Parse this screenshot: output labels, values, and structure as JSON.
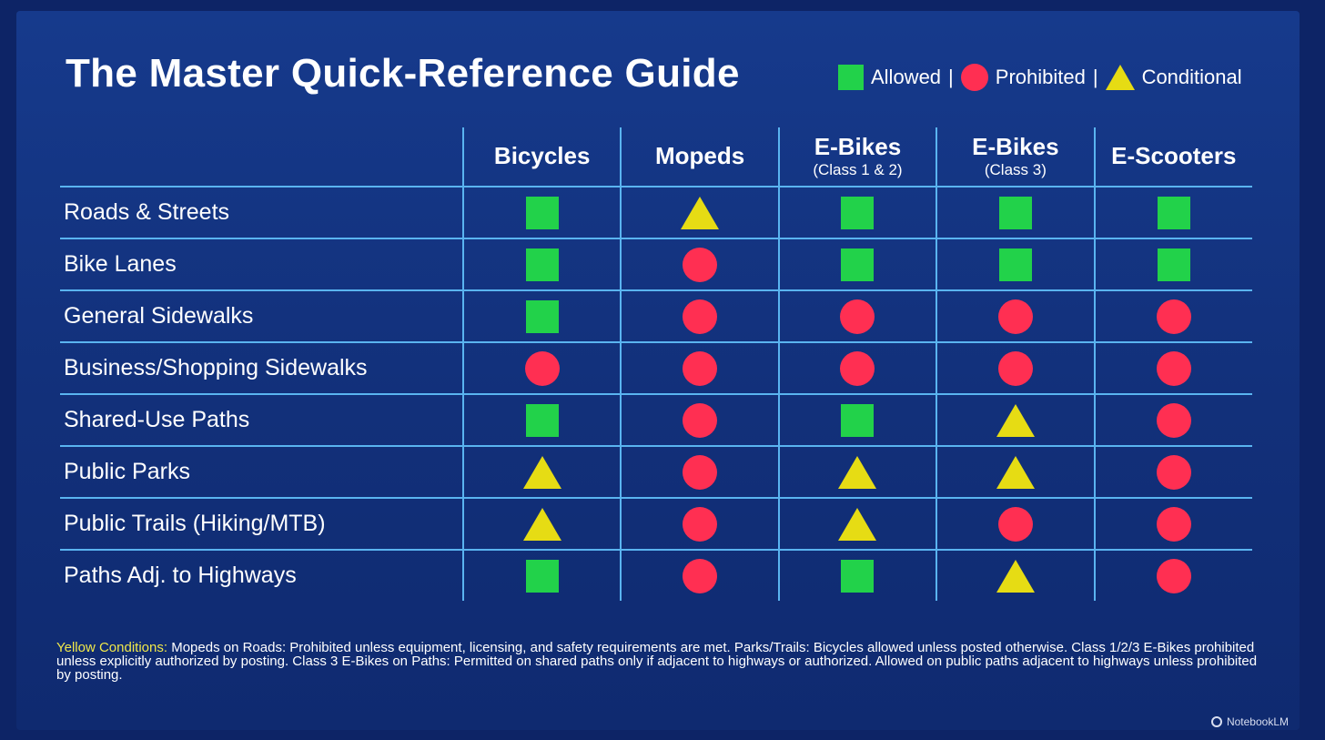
{
  "title": "The Master Quick-Reference Guide",
  "legend": {
    "allowed": "Allowed",
    "prohibited": "Prohibited",
    "conditional": "Conditional",
    "separator": "|"
  },
  "columns": [
    {
      "label": "Bicycles",
      "sub": ""
    },
    {
      "label": "Mopeds",
      "sub": ""
    },
    {
      "label": "E-Bikes",
      "sub": "(Class 1 & 2)"
    },
    {
      "label": "E-Bikes",
      "sub": "(Class 3)"
    },
    {
      "label": "E-Scooters",
      "sub": ""
    }
  ],
  "rows": [
    {
      "label": "Roads & Streets",
      "cells": [
        "allowed",
        "conditional",
        "allowed",
        "allowed",
        "allowed"
      ]
    },
    {
      "label": "Bike Lanes",
      "cells": [
        "allowed",
        "prohibited",
        "allowed",
        "allowed",
        "allowed"
      ]
    },
    {
      "label": "General Sidewalks",
      "cells": [
        "allowed",
        "prohibited",
        "prohibited",
        "prohibited",
        "prohibited"
      ]
    },
    {
      "label": "Business/Shopping Sidewalks",
      "cells": [
        "prohibited",
        "prohibited",
        "prohibited",
        "prohibited",
        "prohibited"
      ]
    },
    {
      "label": "Shared-Use Paths",
      "cells": [
        "allowed",
        "prohibited",
        "allowed",
        "conditional",
        "prohibited"
      ]
    },
    {
      "label": "Public Parks",
      "cells": [
        "conditional",
        "prohibited",
        "conditional",
        "conditional",
        "prohibited"
      ]
    },
    {
      "label": "Public Trails (Hiking/MTB)",
      "cells": [
        "conditional",
        "prohibited",
        "conditional",
        "prohibited",
        "prohibited"
      ]
    },
    {
      "label": "Paths Adj. to Highways",
      "cells": [
        "allowed",
        "prohibited",
        "allowed",
        "conditional",
        "prohibited"
      ]
    }
  ],
  "colors": {
    "allowed": "#22d24a",
    "prohibited": "#ff2f52",
    "conditional": "#e6dc14",
    "grid_line": "#5ab4f0",
    "background": "#163a8c"
  },
  "notes": {
    "lead": "Yellow Conditions:",
    "text": "Mopeds on Roads: Prohibited unless equipment, licensing, and safety requirements are met. Parks/Trails: Bicycles allowed unless posted otherwise. Class 1/2/3 E-Bikes prohibited unless explicitly authorized by posting. Class 3 E-Bikes on Paths: Permitted on shared paths only if adjacent to highways or authorized. Allowed on public paths adjacent to highways unless prohibited by posting."
  },
  "brand": "NotebookLM"
}
